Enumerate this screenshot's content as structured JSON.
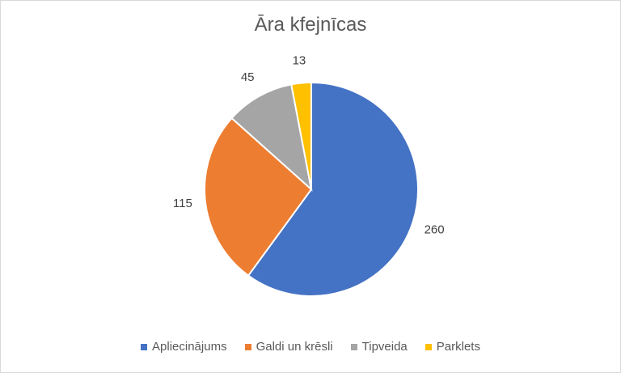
{
  "chart_data": {
    "type": "pie",
    "title": "Āra kfejnīcas",
    "categories": [
      "Apliecinājums",
      "Galdi un krēsli",
      "Tipveida",
      "Parklets"
    ],
    "values": [
      260,
      115,
      45,
      13
    ],
    "colors": [
      "#4472C4",
      "#ED7D31",
      "#A5A5A5",
      "#FFC000"
    ],
    "data_labels": [
      "260",
      "115",
      "45",
      "13"
    ],
    "legend_position": "bottom",
    "start_angle_deg": 0,
    "direction": "clockwise"
  }
}
